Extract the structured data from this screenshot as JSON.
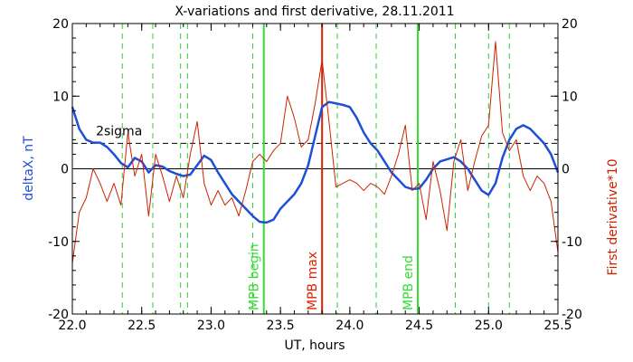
{
  "chart_data": {
    "type": "line",
    "title": "X-variations and first derivative, 28.11.2011",
    "xlabel": "UT, hours",
    "ylabel_left": "deltaX, nT",
    "ylabel_right": "First derivative*10",
    "xlim": [
      22.0,
      25.5
    ],
    "ylim": [
      -20,
      20
    ],
    "grid": false,
    "x_ticks": [
      22.0,
      22.5,
      23.0,
      23.5,
      24.0,
      24.5,
      25.0,
      25.5
    ],
    "x_tick_labels": [
      "22.0",
      "22.5",
      "23.0",
      "23.5",
      "24.0",
      "24.5",
      "25.0",
      "25.5"
    ],
    "y_ticks": [
      -20,
      -10,
      0,
      10,
      20
    ],
    "y_tick_labels_left": [
      "-20",
      "-10",
      "0",
      "10",
      "20"
    ],
    "y_tick_labels_right": [
      "-20",
      "-10",
      "0",
      "10",
      "20"
    ],
    "colors": {
      "deltaX": "#1f4fd6",
      "derivative": "#cc2200",
      "mpb": "#33dd33",
      "mpb_max": "#dd2200",
      "dashed_green": "#33cc33",
      "axis": "#000000"
    },
    "reference_lines": [
      {
        "label": "2sigma",
        "y": 3.5,
        "style": "dashed",
        "color": "#000000"
      },
      {
        "label": "",
        "y": 0,
        "style": "solid",
        "color": "#000000"
      }
    ],
    "vertical_markers": [
      {
        "label": "MPB begin",
        "x": 23.38,
        "style": "solid",
        "color": "#33dd33"
      },
      {
        "label": "MPB max",
        "x": 23.8,
        "style": "solid",
        "color": "#dd2200"
      },
      {
        "label": "MPB end",
        "x": 24.49,
        "style": "solid",
        "color": "#33dd33"
      }
    ],
    "dashed_markers": [
      22.36,
      22.58,
      22.78,
      22.83,
      23.3,
      23.91,
      24.19,
      24.76,
      25.0,
      25.15
    ],
    "series": [
      {
        "name": "deltaX, nT",
        "axis": "left",
        "color": "#1f4fd6",
        "x": [
          22.0,
          22.05,
          22.1,
          22.15,
          22.2,
          22.25,
          22.3,
          22.35,
          22.4,
          22.45,
          22.5,
          22.55,
          22.6,
          22.65,
          22.7,
          22.75,
          22.8,
          22.85,
          22.9,
          22.95,
          23.0,
          23.05,
          23.1,
          23.15,
          23.2,
          23.25,
          23.3,
          23.35,
          23.4,
          23.45,
          23.5,
          23.55,
          23.6,
          23.65,
          23.7,
          23.75,
          23.8,
          23.85,
          23.9,
          23.95,
          24.0,
          24.05,
          24.1,
          24.15,
          24.2,
          24.25,
          24.3,
          24.35,
          24.4,
          24.45,
          24.5,
          24.55,
          24.6,
          24.65,
          24.7,
          24.75,
          24.8,
          24.85,
          24.9,
          24.95,
          25.0,
          25.05,
          25.1,
          25.15,
          25.2,
          25.25,
          25.3,
          25.35,
          25.4,
          25.45,
          25.5
        ],
        "y": [
          8.5,
          5.5,
          4.0,
          3.6,
          3.6,
          3.0,
          2.0,
          0.8,
          0.2,
          1.5,
          1.0,
          -0.5,
          0.5,
          0.3,
          -0.3,
          -0.7,
          -1.0,
          -0.8,
          0.5,
          1.8,
          1.2,
          -0.5,
          -2.0,
          -3.5,
          -4.5,
          -5.5,
          -6.5,
          -7.3,
          -7.4,
          -7.0,
          -5.5,
          -4.5,
          -3.5,
          -2.0,
          0.5,
          4.5,
          8.5,
          9.2,
          9.0,
          8.8,
          8.5,
          7.0,
          5.0,
          3.5,
          2.5,
          1.0,
          -0.5,
          -1.5,
          -2.5,
          -2.8,
          -2.7,
          -1.5,
          0.0,
          1.0,
          1.3,
          1.6,
          1.0,
          0.0,
          -1.5,
          -3.0,
          -3.6,
          -2.0,
          1.5,
          4.0,
          5.5,
          6.0,
          5.5,
          4.5,
          3.5,
          2.0,
          -0.5
        ]
      },
      {
        "name": "First derivative*10",
        "axis": "right",
        "color": "#cc2200",
        "x": [
          22.0,
          22.05,
          22.1,
          22.15,
          22.2,
          22.25,
          22.3,
          22.35,
          22.4,
          22.45,
          22.5,
          22.55,
          22.6,
          22.65,
          22.7,
          22.75,
          22.8,
          22.85,
          22.9,
          22.95,
          23.0,
          23.05,
          23.1,
          23.15,
          23.2,
          23.25,
          23.3,
          23.35,
          23.4,
          23.45,
          23.5,
          23.55,
          23.6,
          23.65,
          23.7,
          23.75,
          23.8,
          23.85,
          23.9,
          23.95,
          24.0,
          24.05,
          24.1,
          24.15,
          24.2,
          24.25,
          24.3,
          24.35,
          24.4,
          24.45,
          24.5,
          24.55,
          24.6,
          24.65,
          24.7,
          24.75,
          24.8,
          24.85,
          24.9,
          24.95,
          25.0,
          25.05,
          25.1,
          25.15,
          25.2,
          25.25,
          25.3,
          25.35,
          25.4,
          25.45,
          25.5
        ],
        "y": [
          -13.0,
          -6.0,
          -4.0,
          0.0,
          -2.0,
          -4.5,
          -2.0,
          -5.0,
          5.0,
          -1.0,
          2.0,
          -6.5,
          2.0,
          -1.0,
          -4.5,
          -1.0,
          -4.0,
          2.0,
          6.5,
          -2.0,
          -5.0,
          -3.0,
          -5.0,
          -4.0,
          -6.5,
          -3.0,
          1.0,
          2.0,
          1.0,
          2.5,
          3.5,
          10.0,
          7.0,
          3.0,
          4.0,
          9.0,
          15.0,
          6.5,
          -2.5,
          -2.0,
          -1.5,
          -2.0,
          -3.0,
          -2.0,
          -2.5,
          -3.5,
          -1.0,
          2.0,
          6.0,
          -3.0,
          -2.0,
          -7.0,
          1.0,
          -3.0,
          -8.5,
          1.0,
          4.0,
          -3.0,
          1.0,
          4.5,
          6.0,
          17.5,
          5.0,
          2.5,
          4.0,
          -1.0,
          -3.0,
          -1.0,
          -2.0,
          -4.5,
          -11.5
        ]
      }
    ]
  }
}
